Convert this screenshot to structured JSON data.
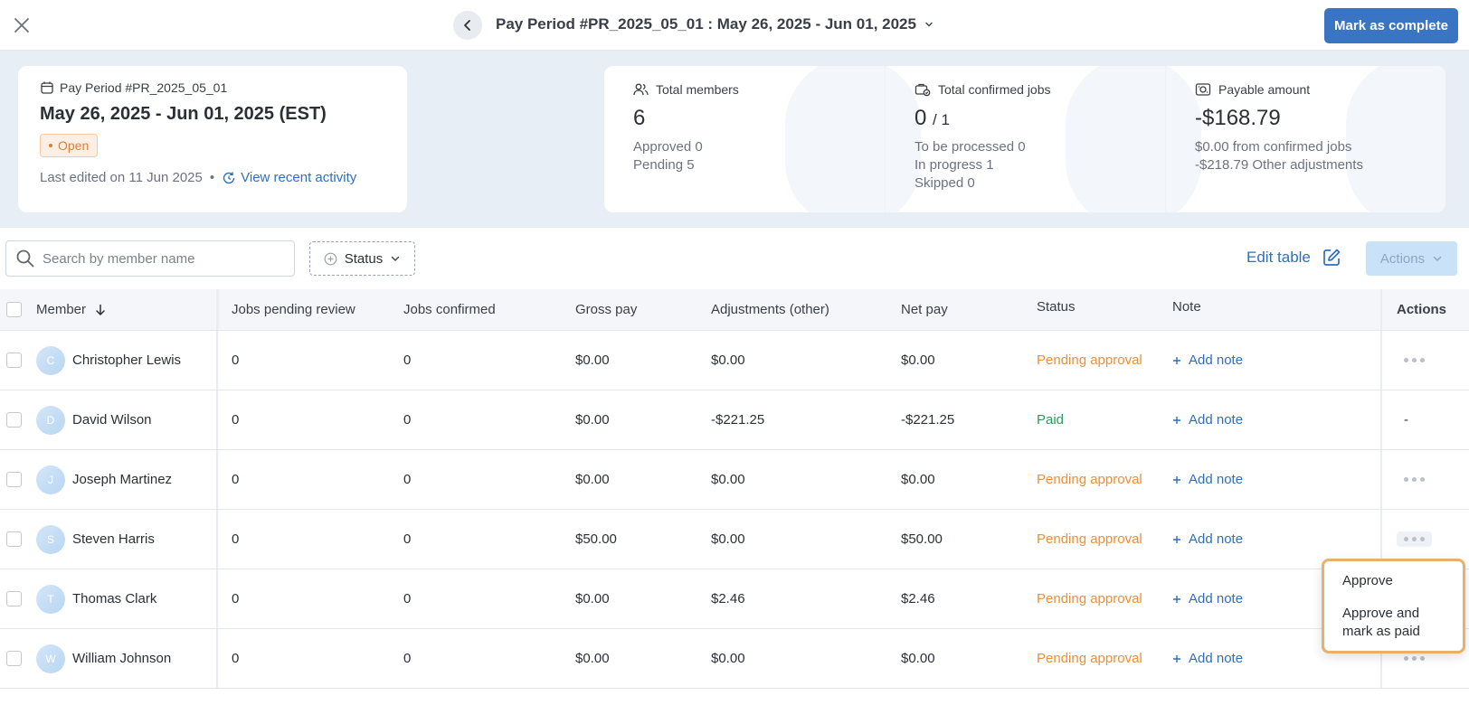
{
  "header": {
    "period_title": "Pay Period #PR_2025_05_01 : May 26, 2025 - Jun 01, 2025",
    "mark_complete": "Mark as complete"
  },
  "period_card": {
    "label": "Pay Period #PR_2025_05_01",
    "range": "May 26, 2025 - Jun 01, 2025 (EST)",
    "status": "Open",
    "last_edited": "Last edited on 11 Jun 2025",
    "separator": "•",
    "view_activity": "View recent activity"
  },
  "stats": {
    "members": {
      "label": "Total members",
      "value": "6",
      "approved": "Approved 0",
      "pending": "Pending 5"
    },
    "jobs": {
      "label": "Total confirmed jobs",
      "value": "0",
      "total": "/ 1",
      "to_process": "To be processed 0",
      "in_progress": "In progress 1",
      "skipped": "Skipped 0"
    },
    "payable": {
      "label": "Payable amount",
      "value": "-$168.79",
      "from_jobs": "$0.00 from confirmed jobs",
      "other": "-$218.79 Other adjustments"
    }
  },
  "toolbar": {
    "search_placeholder": "Search by member name",
    "status_filter": "Status",
    "edit_table": "Edit table",
    "actions": "Actions"
  },
  "table": {
    "columns": {
      "member": "Member",
      "jobs_pending": "Jobs pending review",
      "jobs_confirmed": "Jobs confirmed",
      "gross": "Gross pay",
      "adjustments": "Adjustments (other)",
      "net": "Net pay",
      "status": "Status",
      "note": "Note",
      "actions": "Actions"
    },
    "add_note": "Add note",
    "rows": [
      {
        "initial": "C",
        "name": "Christopher Lewis",
        "jobs_pending": "0",
        "jobs_confirmed": "0",
        "gross": "$0.00",
        "adjustments": "$0.00",
        "net": "$0.00",
        "status": "Pending approval",
        "action": ""
      },
      {
        "initial": "D",
        "name": "David Wilson",
        "jobs_pending": "0",
        "jobs_confirmed": "0",
        "gross": "$0.00",
        "adjustments": "-$221.25",
        "net": "-$221.25",
        "status": "Paid",
        "action": "-"
      },
      {
        "initial": "J",
        "name": "Joseph Martinez",
        "jobs_pending": "0",
        "jobs_confirmed": "0",
        "gross": "$0.00",
        "adjustments": "$0.00",
        "net": "$0.00",
        "status": "Pending approval",
        "action": ""
      },
      {
        "initial": "S",
        "name": "Steven Harris",
        "jobs_pending": "0",
        "jobs_confirmed": "0",
        "gross": "$50.00",
        "adjustments": "$0.00",
        "net": "$50.00",
        "status": "Pending approval",
        "action": ""
      },
      {
        "initial": "T",
        "name": "Thomas Clark",
        "jobs_pending": "0",
        "jobs_confirmed": "0",
        "gross": "$0.00",
        "adjustments": "$2.46",
        "net": "$2.46",
        "status": "Pending approval",
        "action": ""
      },
      {
        "initial": "W",
        "name": "William Johnson",
        "jobs_pending": "0",
        "jobs_confirmed": "0",
        "gross": "$0.00",
        "adjustments": "$0.00",
        "net": "$0.00",
        "status": "Pending approval",
        "action": ""
      }
    ]
  },
  "menu": {
    "approve": "Approve",
    "approve_paid": "Approve and mark as paid"
  },
  "colors": {
    "primary": "#3a75c4",
    "link": "#2f6fbf",
    "pending": "#ec8f3a",
    "paid": "#2e9a5a",
    "open_badge": "#e57c2f",
    "menu_highlight": "#e8b06a"
  }
}
